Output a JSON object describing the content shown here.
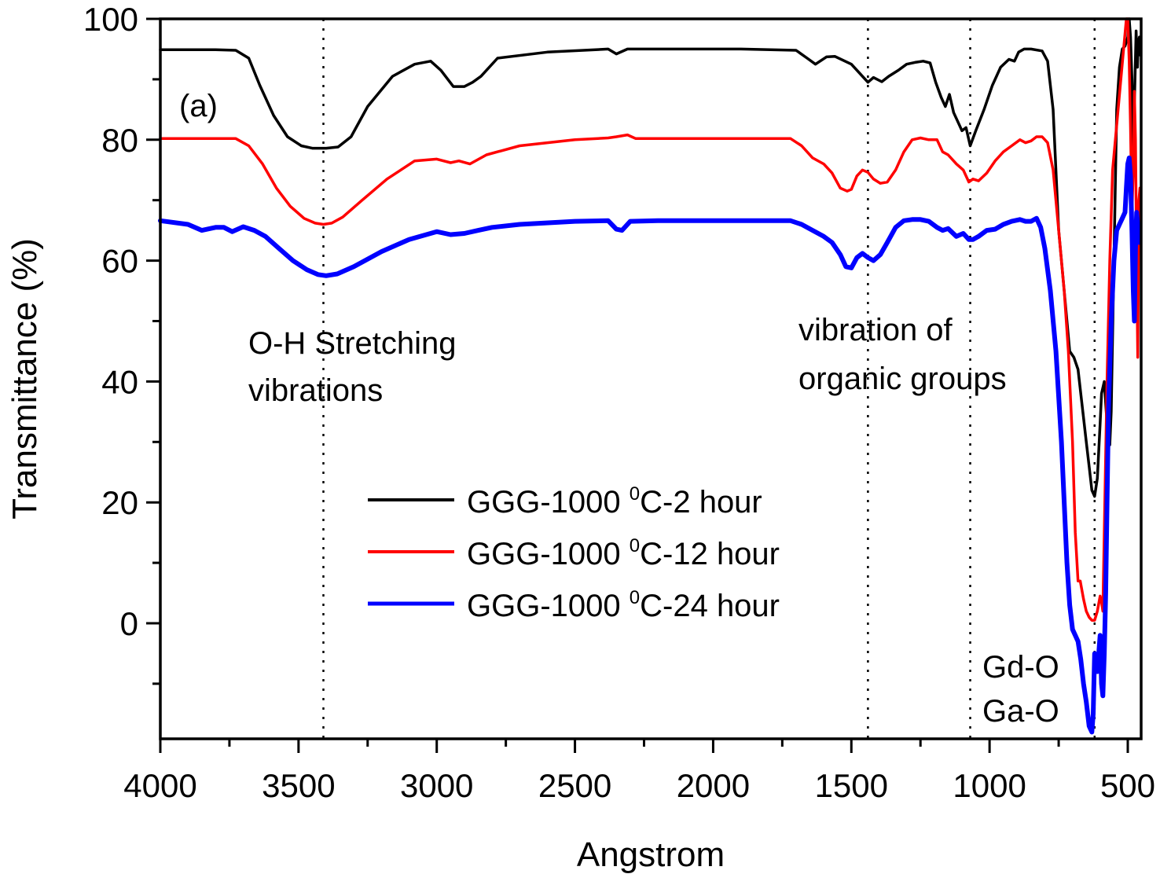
{
  "chart_data": {
    "type": "line",
    "panel_label": "(a)",
    "title": "",
    "xlabel": "Angstrom",
    "ylabel": "Transmittance (%)",
    "xlim": [
      4000,
      450
    ],
    "ylim": [
      -19,
      100
    ],
    "x_reversed": true,
    "grid": false,
    "x_ticks": [
      4000,
      3500,
      3000,
      2500,
      2000,
      1500,
      1000,
      500
    ],
    "x_tick_labels": [
      "4000",
      "3500",
      "3000",
      "2500",
      "2000",
      "1500",
      "1000",
      "500"
    ],
    "x_minor_ticks": [
      3750,
      3250,
      2750,
      2250,
      1750,
      1250,
      750
    ],
    "y_ticks": [
      0,
      20,
      40,
      60,
      80,
      100
    ],
    "y_tick_labels": [
      "0",
      "20",
      "40",
      "60",
      "80",
      "100"
    ],
    "y_minor_ticks": [
      -10,
      10,
      30,
      50,
      70,
      90
    ],
    "legend": {
      "placement": "center",
      "entries": [
        {
          "prefix": "GGG-1000 ",
          "sup": "0",
          "suffix": "C-2 hour"
        },
        {
          "prefix": "GGG-1000 ",
          "sup": "0",
          "suffix": "C-12 hour"
        },
        {
          "prefix": "GGG-1000 ",
          "sup": "0",
          "suffix": "C-24 hour"
        }
      ]
    },
    "reference_lines": [
      {
        "x": 3410,
        "style": "dotted",
        "label": "O-H stretching"
      },
      {
        "x": 1440,
        "style": "dotted",
        "label": "organic groups"
      },
      {
        "x": 1070,
        "style": "dotted",
        "label": "organic groups"
      },
      {
        "x": 620,
        "style": "dotted",
        "label": "Gd-O / Ga-O"
      }
    ],
    "annotations": [
      {
        "id": "oh",
        "lines": [
          "O-H Stretching",
          " vibrations"
        ],
        "x": 3680,
        "y": 45
      },
      {
        "id": "organic",
        "lines": [
          "vibration of",
          "organic groups"
        ],
        "x": 1640,
        "y": 47
      },
      {
        "id": "metal-oxide",
        "lines": [
          "Gd-O",
          "Ga-O"
        ],
        "x": 825,
        "y": -7
      }
    ],
    "series": [
      {
        "name": "GGG-1000 0C-2 hour",
        "color": "#000000",
        "x": [
          4000,
          3800,
          3727,
          3680,
          3640,
          3590,
          3540,
          3490,
          3450,
          3400,
          3357,
          3310,
          3250,
          3160,
          3080,
          3022,
          2985,
          2940,
          2900,
          2870,
          2840,
          2780,
          2600,
          2380,
          2350,
          2310,
          2200,
          1900,
          1700,
          1660,
          1630,
          1590,
          1560,
          1500,
          1460,
          1440,
          1420,
          1390,
          1365,
          1330,
          1300,
          1270,
          1240,
          1215,
          1195,
          1175,
          1160,
          1145,
          1130,
          1115,
          1100,
          1085,
          1070,
          1050,
          1020,
          990,
          960,
          930,
          910,
          895,
          875,
          850,
          810,
          790,
          770,
          750,
          730,
          710,
          695,
          680,
          670,
          660,
          650,
          640,
          630,
          620,
          610,
          600,
          595,
          585,
          575,
          565,
          560,
          550,
          540,
          530,
          520,
          510,
          500,
          495,
          490,
          485,
          480,
          475,
          470,
          465,
          462,
          458,
          455
        ],
        "y": [
          94.9,
          94.9,
          94.8,
          93.5,
          89.0,
          84.0,
          80.5,
          79.0,
          78.6,
          78.6,
          78.8,
          80.5,
          85.5,
          90.5,
          92.5,
          93.0,
          91.5,
          88.8,
          88.8,
          89.5,
          90.5,
          93.5,
          94.5,
          95.0,
          94.2,
          95.0,
          95.0,
          95.0,
          94.8,
          93.5,
          92.5,
          93.7,
          93.8,
          92.5,
          90.5,
          89.5,
          90.3,
          89.6,
          90.5,
          91.5,
          92.5,
          92.8,
          93.0,
          92.7,
          89.5,
          87.0,
          85.5,
          87.5,
          84.5,
          83.0,
          81.5,
          82.0,
          79.0,
          81.5,
          85.0,
          89.0,
          92.0,
          93.3,
          93.0,
          94.5,
          95.0,
          95.0,
          94.7,
          93.0,
          85.0,
          65.0,
          55.0,
          45.0,
          44.0,
          42.0,
          38.0,
          34.0,
          30.0,
          26.0,
          22.0,
          21.0,
          24.0,
          33.0,
          38.0,
          40.0,
          33.0,
          29.5,
          35.0,
          60.0,
          85.0,
          92.0,
          95.0,
          95.5,
          97.0,
          100.0,
          97.0,
          90.0,
          78.0,
          88.0,
          98.0,
          92.0,
          96.0,
          97.0,
          94.0
        ]
      },
      {
        "name": "GGG-1000 0C-12 hour",
        "color": "#ff0000",
        "x": [
          4000,
          3800,
          3727,
          3680,
          3630,
          3580,
          3530,
          3480,
          3440,
          3410,
          3380,
          3340,
          3270,
          3180,
          3080,
          3000,
          2950,
          2920,
          2880,
          2820,
          2700,
          2500,
          2380,
          2350,
          2310,
          2280,
          2200,
          1900,
          1720,
          1680,
          1640,
          1600,
          1570,
          1540,
          1515,
          1500,
          1480,
          1460,
          1440,
          1420,
          1395,
          1370,
          1340,
          1310,
          1280,
          1250,
          1220,
          1190,
          1170,
          1150,
          1120,
          1095,
          1075,
          1060,
          1040,
          1010,
          980,
          950,
          920,
          890,
          870,
          850,
          830,
          810,
          790,
          770,
          750,
          730,
          715,
          700,
          690,
          680,
          672,
          660,
          650,
          640,
          630,
          620,
          610,
          600,
          595,
          590,
          585,
          575,
          565,
          555,
          545,
          535,
          525,
          515,
          505,
          500,
          495,
          490,
          485,
          480,
          476,
          472,
          468,
          464,
          460,
          456
        ],
        "y": [
          80.2,
          80.2,
          80.2,
          79.0,
          76.0,
          72.0,
          69.0,
          67.0,
          66.2,
          66.0,
          66.2,
          67.2,
          70.0,
          73.5,
          76.5,
          76.8,
          76.2,
          76.5,
          76.0,
          77.5,
          79.0,
          80.0,
          80.3,
          80.5,
          80.8,
          80.2,
          80.2,
          80.2,
          80.2,
          79.0,
          77.0,
          76.0,
          74.5,
          72.0,
          71.5,
          71.8,
          74.0,
          75.0,
          74.6,
          73.5,
          72.8,
          73.0,
          75.0,
          78.0,
          80.0,
          80.3,
          80.0,
          80.0,
          78.0,
          77.5,
          76.0,
          75.0,
          73.0,
          73.5,
          73.2,
          74.5,
          76.5,
          78.0,
          79.0,
          80.0,
          79.5,
          79.8,
          80.5,
          80.5,
          79.5,
          75.0,
          65.0,
          55.0,
          45.0,
          30.0,
          15.0,
          7.0,
          7.0,
          4.0,
          2.0,
          1.0,
          0.5,
          0.5,
          2.0,
          4.5,
          3.5,
          2.0,
          15.0,
          40.0,
          60.0,
          75.0,
          80.0,
          85.0,
          90.0,
          95.0,
          100.0,
          100.0,
          93.0,
          82.0,
          68.0,
          75.0,
          88.0,
          80.0,
          60.0,
          44.0,
          70.0,
          72.0
        ]
      },
      {
        "name": "GGG-1000 0C-24 hour",
        "color": "#0000ff",
        "x": [
          4000,
          3900,
          3850,
          3800,
          3770,
          3740,
          3700,
          3660,
          3620,
          3570,
          3520,
          3470,
          3430,
          3400,
          3360,
          3300,
          3200,
          3100,
          3000,
          2950,
          2900,
          2850,
          2800,
          2700,
          2500,
          2380,
          2350,
          2330,
          2300,
          2200,
          1900,
          1720,
          1680,
          1640,
          1600,
          1570,
          1540,
          1520,
          1500,
          1480,
          1460,
          1440,
          1420,
          1395,
          1370,
          1340,
          1310,
          1280,
          1250,
          1220,
          1190,
          1170,
          1150,
          1120,
          1095,
          1075,
          1060,
          1040,
          1010,
          980,
          950,
          920,
          890,
          870,
          850,
          830,
          815,
          800,
          780,
          760,
          740,
          720,
          710,
          700,
          690,
          680,
          670,
          660,
          650,
          640,
          630,
          625,
          620,
          610,
          600,
          595,
          590,
          585,
          580,
          575,
          570,
          560,
          550,
          540,
          530,
          520,
          510,
          505,
          500,
          495,
          490,
          485,
          480,
          476,
          472,
          468,
          464,
          460,
          456
        ],
        "y": [
          66.6,
          66.0,
          65.0,
          65.5,
          65.5,
          64.8,
          65.6,
          65.0,
          64.0,
          62.0,
          60.0,
          58.5,
          57.7,
          57.5,
          57.8,
          59.0,
          61.5,
          63.5,
          64.8,
          64.3,
          64.5,
          65.0,
          65.5,
          66.0,
          66.5,
          66.6,
          65.2,
          65.0,
          66.5,
          66.6,
          66.6,
          66.6,
          66.0,
          65.0,
          64.0,
          63.0,
          61.0,
          59.0,
          58.8,
          60.5,
          61.2,
          60.5,
          60.0,
          61.0,
          63.0,
          65.5,
          66.6,
          66.8,
          66.8,
          66.5,
          65.5,
          65.0,
          65.3,
          64.0,
          64.5,
          63.5,
          63.5,
          64.0,
          65.0,
          65.2,
          66.0,
          66.5,
          66.8,
          66.5,
          66.5,
          67.0,
          65.5,
          62.0,
          55.0,
          45.0,
          30.0,
          10.0,
          3.0,
          -1.0,
          -2.0,
          -3.0,
          -6.0,
          -10.0,
          -13.0,
          -17.0,
          -18.0,
          -15.0,
          -5.0,
          -8.0,
          -2.0,
          -10.0,
          -12.0,
          -5.0,
          5.0,
          20.0,
          35.0,
          50.0,
          60.0,
          65.0,
          66.0,
          67.0,
          68.0,
          72.0,
          76.0,
          77.0,
          74.0,
          65.0,
          55.0,
          50.0,
          62.0,
          68.0,
          66.0,
          63.0,
          64.0
        ]
      }
    ]
  }
}
